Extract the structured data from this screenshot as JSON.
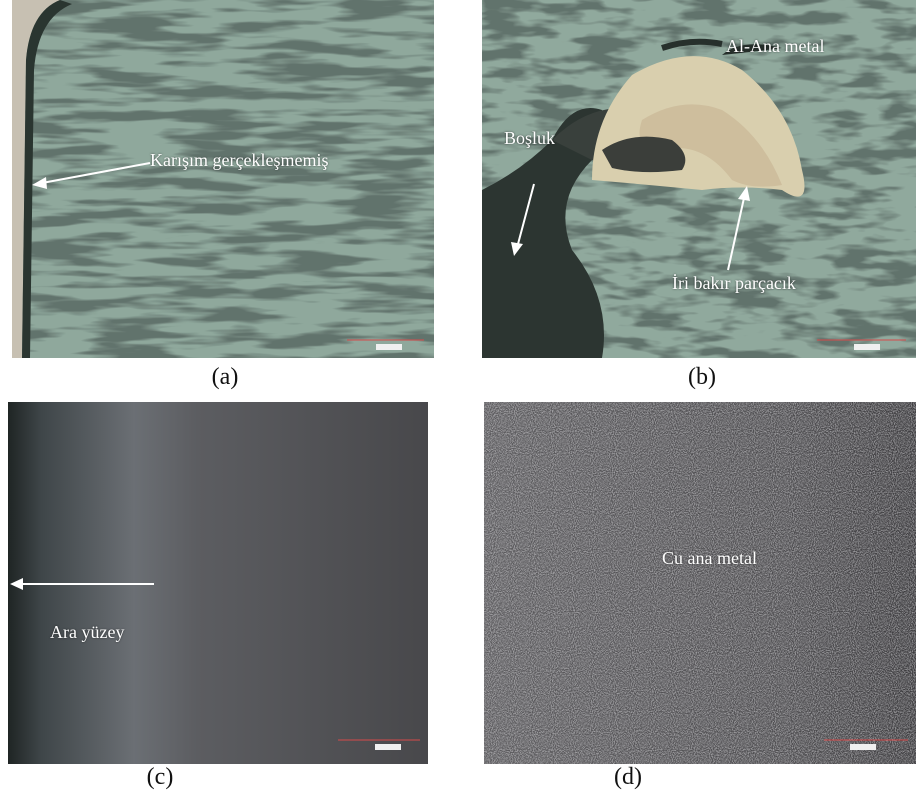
{
  "panels": {
    "a": {
      "caption": "(a)",
      "annotation": "Karışım gerçekleşmemiş"
    },
    "b": {
      "caption": "(b)",
      "annotation_top": "Al-Ana metal",
      "annotation_left": "Boşluk",
      "annotation_bottom": "İri bakır parçacık"
    },
    "c": {
      "caption": "(c)",
      "annotation": "Ara yüzey"
    },
    "d": {
      "caption": "(d)",
      "annotation": "Cu ana metal"
    }
  },
  "colors": {
    "aluminum_matrix": "#8fa89c",
    "dark_particles": "#1f2c26",
    "copper_particle": "#d9cfae",
    "copper_micro": "#5b5a5c",
    "scale_bar": "#d64a4a"
  }
}
